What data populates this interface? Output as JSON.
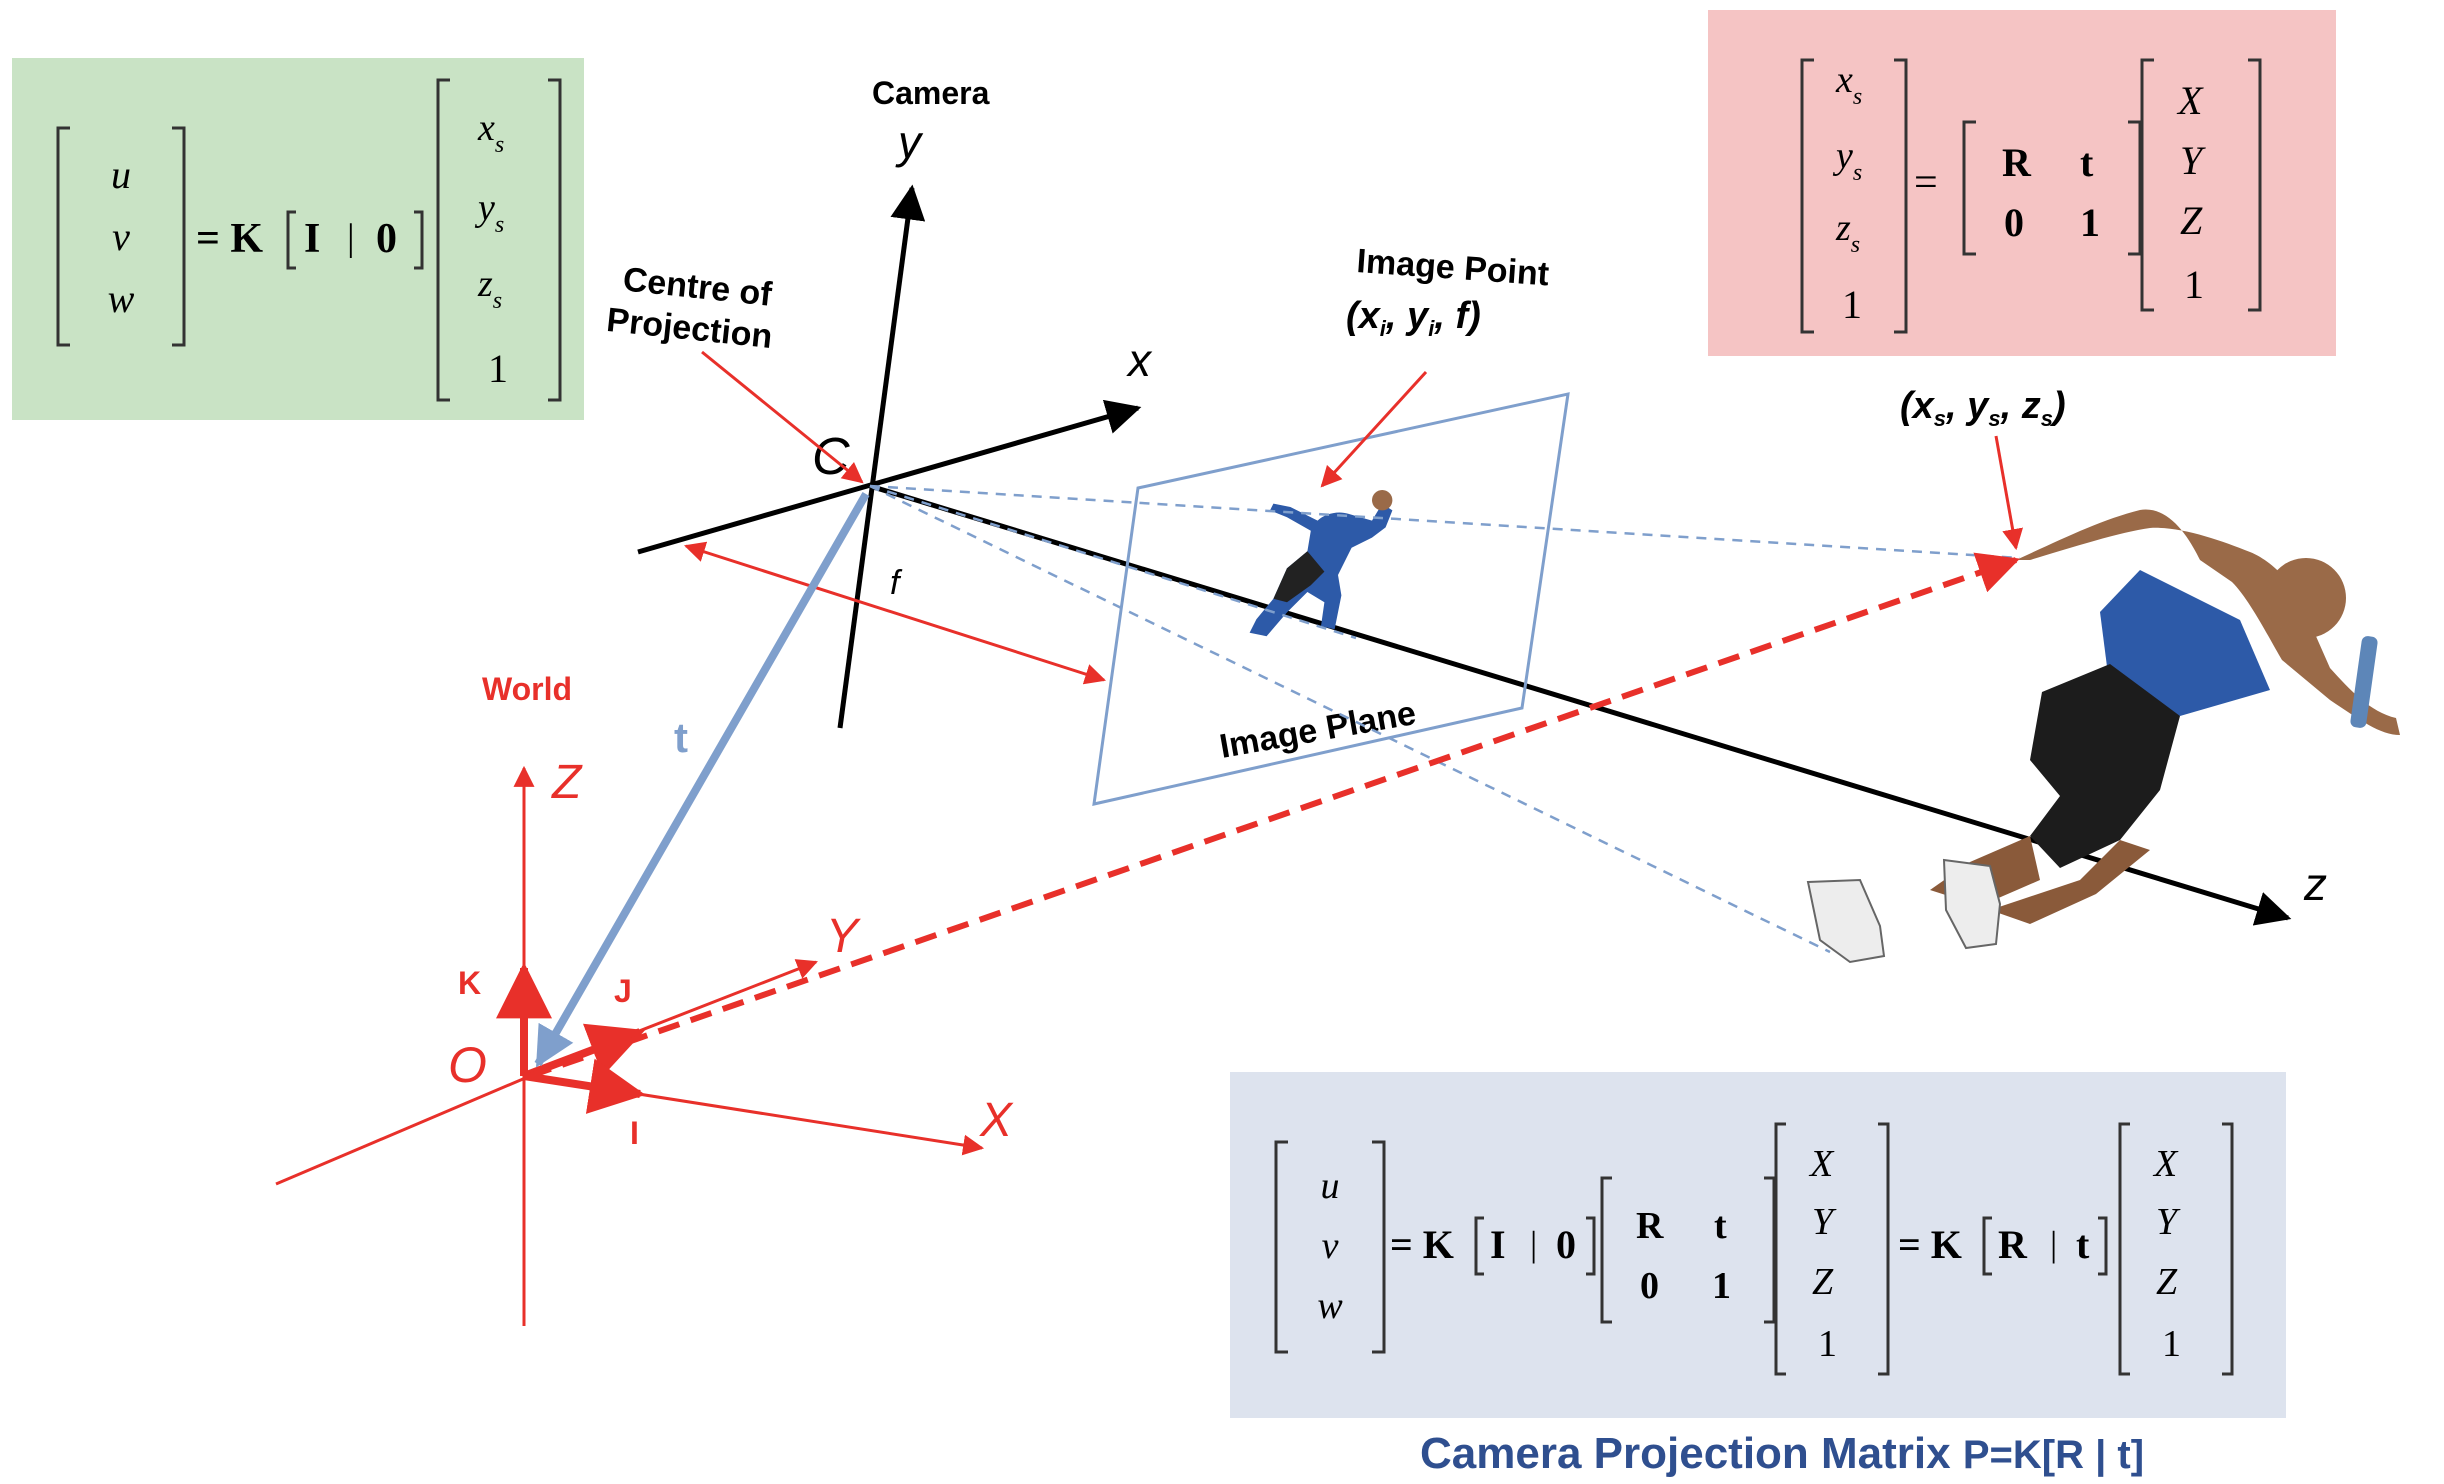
{
  "colors": {
    "world": "#e8302a",
    "camera_axes": "#000000",
    "translation": "#7f9fcc",
    "image_plane": "#7f9fcc",
    "green_box": "#c9e3c5",
    "pink_box": "#f5c4c4",
    "blue_box": "#dde3ee",
    "caption": "#2f4f8f"
  },
  "icons": {
    "runner_large": "runner-figure-icon",
    "runner_small": "runner-image-icon"
  },
  "camera": {
    "title": "Camera",
    "axis_y": "y",
    "axis_x": "x",
    "axis_z": "z",
    "centre_label": "Centre of Projection",
    "centre_label_line1": "Centre of",
    "centre_label_line2": "Projection",
    "centre_symbol": "C",
    "focal": "f"
  },
  "image_point": {
    "title": "Image Point",
    "coords": "(xi, yi, f)",
    "open": "(",
    "x": "x",
    "x_sub": "i",
    "y": "y",
    "y_sub": "i",
    "f": "f",
    "close": ")"
  },
  "image_plane_label": "Image Plane",
  "translation_label": "t",
  "scene_point": {
    "coords": "(xs, ys, zs)",
    "open": "(",
    "x": "x",
    "y": "y",
    "z": "z",
    "sub": "s",
    "close": ")"
  },
  "world": {
    "title": "World",
    "axis_z": "Z",
    "axis_y": "Y",
    "axis_x": "X",
    "origin": "O",
    "unit_k": "K",
    "unit_j": "J",
    "unit_i": "I"
  },
  "green_eq": {
    "lhs": [
      "u",
      "v",
      "w"
    ],
    "equals_k": "= K",
    "i": "I",
    "bar": "|",
    "zero": "0",
    "vec": [
      "x",
      "y",
      "z",
      "1"
    ],
    "sub": "s"
  },
  "pink_eq": {
    "lhs": [
      "x",
      "y",
      "z",
      "1"
    ],
    "sub": "s",
    "equals": "=",
    "m11": "R",
    "m12": "t",
    "m21": "0",
    "m22": "1",
    "rhs": [
      "X",
      "Y",
      "Z",
      "1"
    ]
  },
  "blue_eq": {
    "lhs": [
      "u",
      "v",
      "w"
    ],
    "equals_k": "= K",
    "i": "I",
    "bar": "|",
    "zero": "0",
    "m11": "R",
    "m12": "t",
    "m21": "0",
    "m22": "1",
    "vec1": [
      "X",
      "Y",
      "Z",
      "1"
    ],
    "equals_k2": "= K",
    "r": "R",
    "t": "t",
    "vec2": [
      "X",
      "Y",
      "Z",
      "1"
    ]
  },
  "caption": "Camera Projection Matrix P=K[R | t]",
  "caption_parts": {
    "a": "Camera Projection Matrix ",
    "b": "P=K[R | t]"
  }
}
